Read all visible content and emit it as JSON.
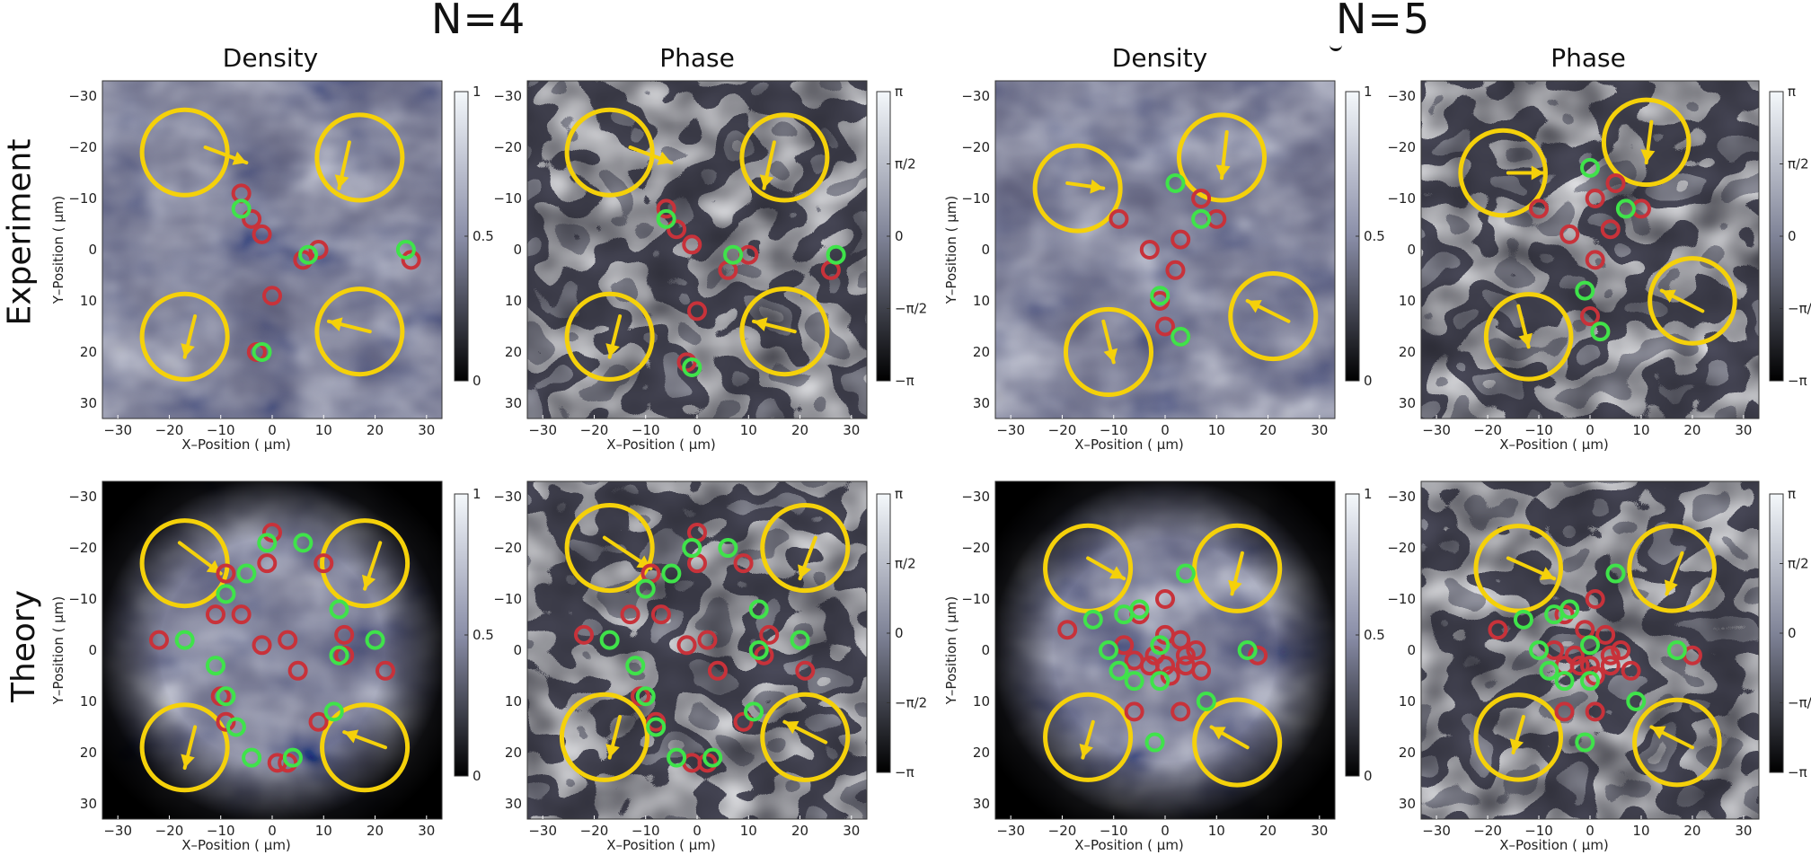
{
  "figure": {
    "groups": [
      {
        "title": "N=4"
      },
      {
        "title": "N=5"
      }
    ],
    "rows": [
      {
        "label": "Experiment"
      },
      {
        "label": "Theory"
      }
    ],
    "column_titles": [
      "Density",
      "Phase",
      "Density",
      "Phase"
    ],
    "xlabel": "X–Position ( μm)",
    "ylabel": "Y–Position ( μm)",
    "x_ticks": [
      "−30",
      "−20",
      "−10",
      "0",
      "10",
      "20",
      "30"
    ],
    "y_ticks": [
      "−30",
      "−20",
      "−10",
      "0",
      "10",
      "20",
      "30"
    ],
    "density_colorbar_ticks": [
      "1",
      "0.5",
      "0"
    ],
    "phase_colorbar_ticks": [
      "π",
      "π/2",
      "0",
      "−π/2",
      "−π"
    ]
  },
  "colors": {
    "ring": "#f5d10a",
    "vortex_red": "#c8323a",
    "vortex_green": "#3fe34a",
    "map_dark": "#15151c",
    "map_light": "#e6ecf2"
  },
  "chart_data": [
    {
      "type": "heatmap",
      "quantity": "Density",
      "group": "N=4",
      "row": "Experiment",
      "xlim": [
        -30,
        30
      ],
      "ylim": [
        -30,
        30
      ],
      "clim": [
        0,
        1
      ],
      "rings": [
        [
          -17,
          -19
        ],
        [
          17,
          -18
        ],
        [
          -17,
          17
        ],
        [
          17,
          16
        ]
      ],
      "arrows": [
        [
          -13,
          -20,
          -5,
          -17
        ],
        [
          15,
          -21,
          13,
          -12
        ],
        [
          -15,
          13,
          -17,
          21
        ],
        [
          19,
          16,
          11,
          14
        ]
      ],
      "red": [
        [
          -6,
          -11
        ],
        [
          -4,
          -6
        ],
        [
          -2,
          -3
        ],
        [
          6,
          2
        ],
        [
          9,
          0
        ],
        [
          27,
          2
        ],
        [
          0,
          9
        ],
        [
          -3,
          20
        ]
      ],
      "green": [
        [
          -6,
          -8
        ],
        [
          7,
          1
        ],
        [
          26,
          0
        ],
        [
          -2,
          20
        ]
      ]
    },
    {
      "type": "heatmap",
      "quantity": "Phase",
      "group": "N=4",
      "row": "Experiment",
      "xlim": [
        -30,
        30
      ],
      "ylim": [
        -30,
        30
      ],
      "clim": [
        "−π",
        "π"
      ],
      "rings": [
        [
          -17,
          -19
        ],
        [
          17,
          -18
        ],
        [
          -17,
          17
        ],
        [
          17,
          16
        ]
      ],
      "arrows": [
        [
          -13,
          -20,
          -5,
          -17
        ],
        [
          15,
          -21,
          13,
          -12
        ],
        [
          -15,
          13,
          -17,
          21
        ],
        [
          19,
          16,
          11,
          14
        ]
      ],
      "red": [
        [
          -6,
          -8
        ],
        [
          -4,
          -4
        ],
        [
          -1,
          -1
        ],
        [
          10,
          1
        ],
        [
          6,
          4
        ],
        [
          26,
          4
        ],
        [
          0,
          12
        ],
        [
          -2,
          22
        ]
      ],
      "green": [
        [
          -6,
          -6
        ],
        [
          7,
          1
        ],
        [
          27,
          1
        ],
        [
          -1,
          23
        ]
      ]
    },
    {
      "type": "heatmap",
      "quantity": "Density",
      "group": "N=5",
      "row": "Experiment",
      "xlim": [
        -30,
        30
      ],
      "ylim": [
        -30,
        30
      ],
      "clim": [
        0,
        1
      ],
      "rings": [
        [
          -17,
          -12
        ],
        [
          11,
          -18
        ],
        [
          -11,
          20
        ],
        [
          21,
          13
        ]
      ],
      "arrows": [
        [
          -19,
          -13,
          -12,
          -12
        ],
        [
          12,
          -23,
          11,
          -14
        ],
        [
          -12,
          14,
          -10,
          22
        ],
        [
          24,
          14,
          16,
          10
        ]
      ],
      "red": [
        [
          -9,
          -6
        ],
        [
          -3,
          0
        ],
        [
          2,
          4
        ],
        [
          7,
          -10
        ],
        [
          10,
          -6
        ],
        [
          3,
          -2
        ],
        [
          -1,
          10
        ],
        [
          0,
          15
        ],
        [
          3,
          17
        ]
      ],
      "green": [
        [
          2,
          -13
        ],
        [
          7,
          -6
        ],
        [
          -1,
          9
        ],
        [
          3,
          17
        ]
      ]
    },
    {
      "type": "heatmap",
      "quantity": "Phase",
      "group": "N=5",
      "row": "Experiment",
      "xlim": [
        -30,
        30
      ],
      "ylim": [
        -30,
        30
      ],
      "clim": [
        "−π",
        "π"
      ],
      "rings": [
        [
          -17,
          -15
        ],
        [
          11,
          -21
        ],
        [
          -12,
          17
        ],
        [
          20,
          10
        ]
      ],
      "arrows": [
        [
          -16,
          -15,
          -9,
          -15
        ],
        [
          12,
          -25,
          11,
          -17
        ],
        [
          -14,
          11,
          -12,
          19
        ],
        [
          22,
          12,
          14,
          8
        ]
      ],
      "red": [
        [
          -10,
          -8
        ],
        [
          -4,
          -3
        ],
        [
          1,
          2
        ],
        [
          5,
          -13
        ],
        [
          10,
          -8
        ],
        [
          4,
          -4
        ],
        [
          0,
          13
        ],
        [
          2,
          16
        ],
        [
          1,
          -10
        ]
      ],
      "green": [
        [
          0,
          -16
        ],
        [
          7,
          -8
        ],
        [
          -1,
          8
        ],
        [
          2,
          16
        ]
      ]
    },
    {
      "type": "heatmap",
      "quantity": "Density",
      "group": "N=4",
      "row": "Theory",
      "xlim": [
        -30,
        30
      ],
      "ylim": [
        -30,
        30
      ],
      "clim": [
        0,
        1
      ],
      "rings": [
        [
          -17,
          -17
        ],
        [
          18,
          -17
        ],
        [
          -17,
          19
        ],
        [
          18,
          19
        ]
      ],
      "arrows": [
        [
          -18,
          -21,
          -10,
          -15
        ],
        [
          21,
          -21,
          18,
          -12
        ],
        [
          -15,
          15,
          -17,
          23
        ],
        [
          22,
          19,
          14,
          16
        ]
      ],
      "red": [
        [
          -9,
          -15
        ],
        [
          -1,
          -17
        ],
        [
          0,
          -23
        ],
        [
          10,
          -17
        ],
        [
          -11,
          -7
        ],
        [
          -6,
          -7
        ],
        [
          -22,
          -2
        ],
        [
          -2,
          -1
        ],
        [
          3,
          -2
        ],
        [
          14,
          -3
        ],
        [
          14,
          1
        ],
        [
          5,
          4
        ],
        [
          22,
          4
        ],
        [
          -10,
          9
        ],
        [
          -9,
          14
        ],
        [
          9,
          14
        ],
        [
          3,
          22
        ],
        [
          1,
          22
        ]
      ],
      "green": [
        [
          -1,
          -21
        ],
        [
          6,
          -21
        ],
        [
          -5,
          -15
        ],
        [
          -9,
          -11
        ],
        [
          13,
          -8
        ],
        [
          -17,
          -2
        ],
        [
          20,
          -2
        ],
        [
          13,
          1
        ],
        [
          -11,
          3
        ],
        [
          -9,
          9
        ],
        [
          12,
          12
        ],
        [
          -7,
          15
        ],
        [
          -4,
          21
        ],
        [
          4,
          21
        ]
      ]
    },
    {
      "type": "heatmap",
      "quantity": "Phase",
      "group": "N=4",
      "row": "Theory",
      "xlim": [
        -30,
        30
      ],
      "ylim": [
        -30,
        30
      ],
      "clim": [
        "−π",
        "π"
      ],
      "rings": [
        [
          -17,
          -20
        ],
        [
          21,
          -20
        ],
        [
          -18,
          17
        ],
        [
          21,
          17
        ]
      ],
      "arrows": [
        [
          -18,
          -22,
          -9,
          -16
        ],
        [
          23,
          -22,
          20,
          -14
        ],
        [
          -15,
          13,
          -17,
          21
        ],
        [
          25,
          18,
          17,
          14
        ]
      ],
      "red": [
        [
          -9,
          -15
        ],
        [
          0,
          -17
        ],
        [
          0,
          -23
        ],
        [
          9,
          -17
        ],
        [
          -13,
          -7
        ],
        [
          -7,
          -7
        ],
        [
          -22,
          -3
        ],
        [
          -2,
          -1
        ],
        [
          2,
          -2
        ],
        [
          14,
          -3
        ],
        [
          13,
          1
        ],
        [
          4,
          4
        ],
        [
          21,
          4
        ],
        [
          -11,
          9
        ],
        [
          -8,
          14
        ],
        [
          9,
          14
        ],
        [
          2,
          22
        ],
        [
          -1,
          22
        ]
      ],
      "green": [
        [
          -1,
          -20
        ],
        [
          6,
          -20
        ],
        [
          -5,
          -15
        ],
        [
          -10,
          -12
        ],
        [
          12,
          -8
        ],
        [
          -17,
          -2
        ],
        [
          20,
          -2
        ],
        [
          12,
          0
        ],
        [
          -12,
          3
        ],
        [
          -10,
          9
        ],
        [
          11,
          12
        ],
        [
          -8,
          15
        ],
        [
          -4,
          21
        ],
        [
          3,
          21
        ]
      ]
    },
    {
      "type": "heatmap",
      "quantity": "Density",
      "group": "N=5",
      "row": "Theory",
      "xlim": [
        -30,
        30
      ],
      "ylim": [
        -30,
        30
      ],
      "clim": [
        0,
        1
      ],
      "rings": [
        [
          -15,
          -16
        ],
        [
          14,
          -16
        ],
        [
          -15,
          17
        ],
        [
          14,
          18
        ]
      ],
      "arrows": [
        [
          -15,
          -18,
          -8,
          -14
        ],
        [
          15,
          -19,
          13,
          -11
        ],
        [
          -14,
          14,
          -16,
          21
        ],
        [
          16,
          19,
          9,
          15
        ]
      ],
      "red": [
        [
          -19,
          -4
        ],
        [
          -5,
          -7
        ],
        [
          0,
          -10
        ],
        [
          0,
          -3
        ],
        [
          3,
          -2
        ],
        [
          -2,
          1
        ],
        [
          4,
          1
        ],
        [
          -8,
          -1
        ],
        [
          -6,
          2
        ],
        [
          0,
          3
        ],
        [
          4,
          3
        ],
        [
          7,
          4
        ],
        [
          18,
          1
        ],
        [
          -6,
          12
        ],
        [
          3,
          12
        ],
        [
          6,
          0
        ],
        [
          -3,
          3
        ],
        [
          1,
          5
        ]
      ],
      "green": [
        [
          4,
          -15
        ],
        [
          -14,
          -6
        ],
        [
          -8,
          -7
        ],
        [
          -5,
          -8
        ],
        [
          -11,
          0
        ],
        [
          -1,
          -1
        ],
        [
          16,
          0
        ],
        [
          -9,
          4
        ],
        [
          -6,
          6
        ],
        [
          -1,
          6
        ],
        [
          8,
          10
        ],
        [
          -2,
          18
        ]
      ]
    },
    {
      "type": "heatmap",
      "quantity": "Phase",
      "group": "N=5",
      "row": "Theory",
      "xlim": [
        -30,
        30
      ],
      "ylim": [
        -30,
        30
      ],
      "clim": [
        "−π",
        "π"
      ],
      "rings": [
        [
          -14,
          -16
        ],
        [
          16,
          -16
        ],
        [
          -14,
          17
        ],
        [
          17,
          18
        ]
      ],
      "arrows": [
        [
          -16,
          -18,
          -7,
          -14
        ],
        [
          18,
          -19,
          15,
          -11
        ],
        [
          -13,
          13,
          -15,
          20
        ],
        [
          20,
          19,
          12,
          15
        ]
      ],
      "red": [
        [
          -18,
          -4
        ],
        [
          -5,
          -7
        ],
        [
          1,
          -10
        ],
        [
          -1,
          -4
        ],
        [
          3,
          -3
        ],
        [
          -3,
          1
        ],
        [
          4,
          1
        ],
        [
          -7,
          0
        ],
        [
          -5,
          3
        ],
        [
          0,
          3
        ],
        [
          4,
          3
        ],
        [
          8,
          4
        ],
        [
          20,
          1
        ],
        [
          -5,
          12
        ],
        [
          1,
          12
        ],
        [
          6,
          0
        ],
        [
          -2,
          3
        ],
        [
          1,
          5
        ]
      ],
      "green": [
        [
          5,
          -15
        ],
        [
          -13,
          -6
        ],
        [
          -7,
          -7
        ],
        [
          -4,
          -8
        ],
        [
          -10,
          0
        ],
        [
          0,
          -1
        ],
        [
          17,
          0
        ],
        [
          -8,
          4
        ],
        [
          -5,
          6
        ],
        [
          0,
          6
        ],
        [
          9,
          10
        ],
        [
          -1,
          18
        ]
      ]
    }
  ]
}
